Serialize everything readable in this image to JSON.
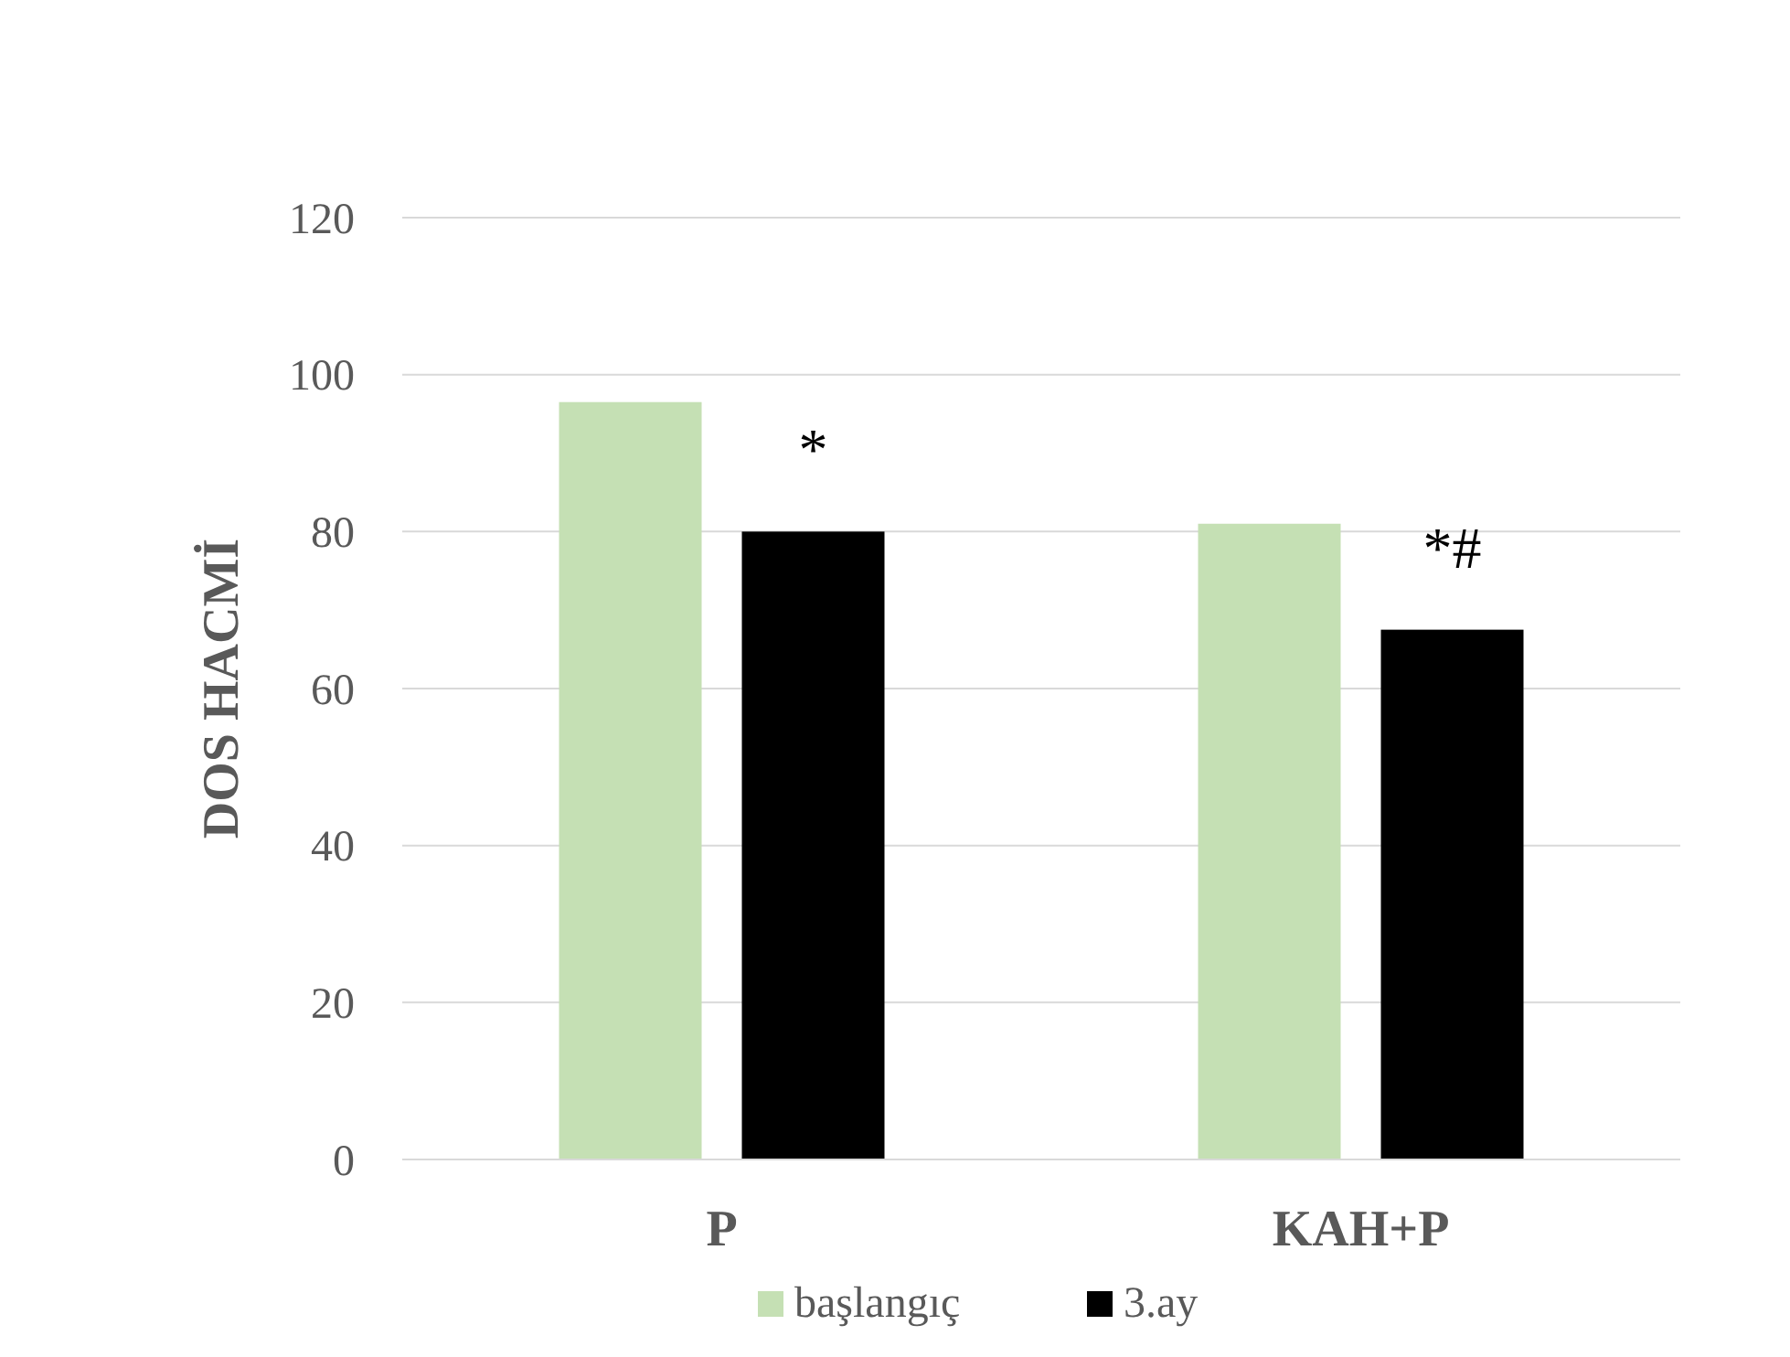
{
  "chart_data": {
    "type": "bar",
    "ylabel": "DOS HACMİ",
    "categories": [
      "P",
      "KAH+P"
    ],
    "series": [
      {
        "name": "başlangıç",
        "color": "#c5e0b4",
        "values": [
          96.5,
          81
        ]
      },
      {
        "name": "3.ay",
        "color": "#000000",
        "values": [
          80,
          67.5
        ]
      }
    ],
    "ylim": [
      0,
      120
    ],
    "yticks": [
      0,
      20,
      40,
      60,
      80,
      100,
      120
    ],
    "grid": "y",
    "legend": "bottom",
    "annotations": [
      "*",
      "*#"
    ]
  }
}
